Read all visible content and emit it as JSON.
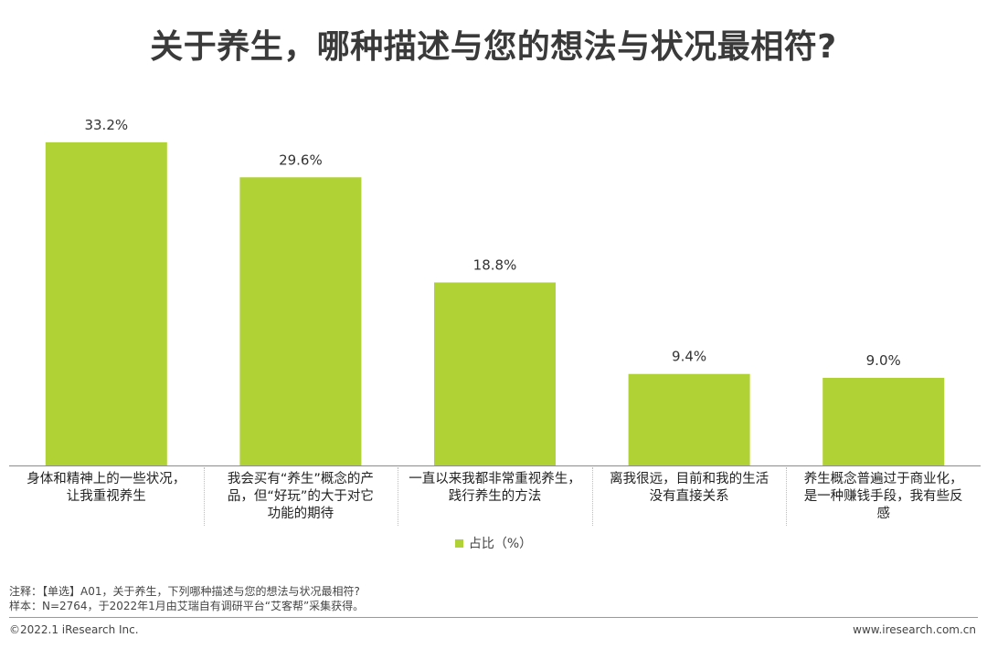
{
  "chart_data": {
    "type": "bar",
    "title": "关于养生，哪种描述与您的想法与状况最相符?",
    "categories": [
      "身体和精神上的一些状况，\n让我重视养生",
      "我会买有“养生”概念的产\n品，但“好玩”的大于对它\n功能的期待",
      "一直以来我都非常重视养生，\n践行养生的方法",
      "离我很远，目前和我的生活\n没有直接关系",
      "养生概念普遍过于商业化，\n是一种赚钱手段，我有些反\n感"
    ],
    "series": [
      {
        "name": "占比（%）",
        "values": [
          33.2,
          29.6,
          18.8,
          9.4,
          9.0
        ],
        "data_labels": [
          "33.2%",
          "29.6%",
          "18.8%",
          "9.4%",
          "9.0%"
        ]
      }
    ],
    "ylim": [
      0,
      36
    ],
    "grid": false,
    "legend_position": "bottom-center",
    "bar_color": "#b0d235",
    "axis_color": "#8c8c8c"
  },
  "notes": {
    "line1": "注释：【单选】A01，关于养生，下列哪种描述与您的想法与状况最相符?",
    "line2": "样本：N=2764，于2022年1月由艾瑞自有调研平台“艾客帮”采集获得。"
  },
  "footer": {
    "copyright": "©2022.1 iResearch Inc.",
    "website": "www.iresearch.com.cn"
  }
}
